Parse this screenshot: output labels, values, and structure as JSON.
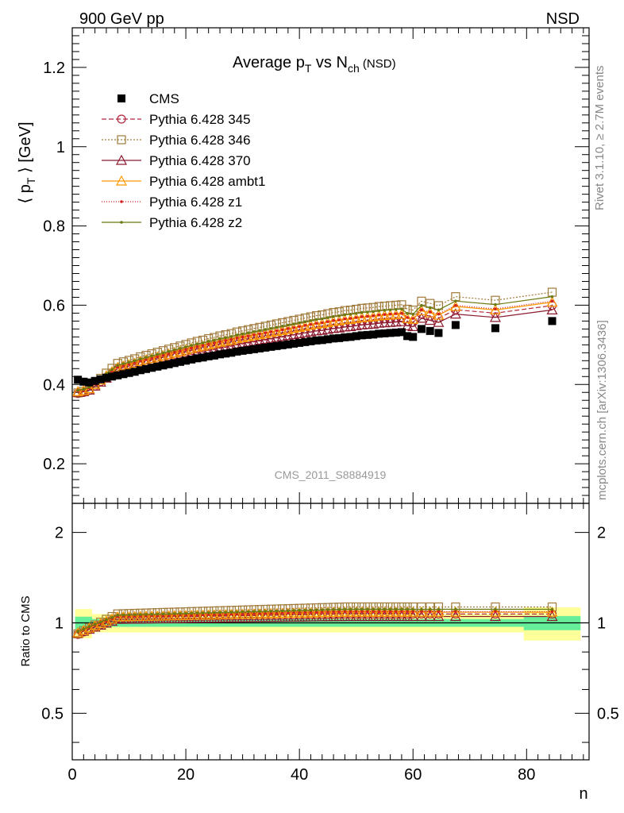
{
  "header": {
    "left_label": "900 GeV pp",
    "right_label": "NSD",
    "analysis_id": "CMS_2011_S8884919",
    "side_note_top": "Rivet 3.1.10, ≥ 2.7M events",
    "side_note_bottom": "mcplots.cern.ch [arXiv:1306.3436]"
  },
  "title": {
    "base": "Average p",
    "sub1": "T",
    "mid": " vs N",
    "sub2": "ch",
    "tail": " (NSD)"
  },
  "axes": {
    "ylabel_main": "⟨ p",
    "ylabel_main_sub": "T",
    "ylabel_main_tail": " ⟩ [GeV]",
    "ylabel_ratio": "Ratio to CMS",
    "xlabel": "n",
    "x_ticks": [
      "0",
      "20",
      "40",
      "60",
      "80"
    ],
    "y_main_ticks": [
      "0.2",
      "0.4",
      "0.6",
      "0.8",
      "1",
      "1.2"
    ],
    "y_ratio_ticks": [
      "0.5",
      "1",
      "2"
    ]
  },
  "legend": [
    {
      "label": "CMS",
      "color": "#000000",
      "marker": "filled-square",
      "dash": ""
    },
    {
      "label": "Pythia 6.428 345",
      "color": "#b2263a",
      "marker": "open-circle",
      "dash": "6,3"
    },
    {
      "label": "Pythia 6.428 346",
      "color": "#a07a3a",
      "marker": "open-square",
      "dash": "2,2"
    },
    {
      "label": "Pythia 6.428 370",
      "color": "#8b1a2e",
      "marker": "open-triangle",
      "dash": ""
    },
    {
      "label": "Pythia 6.428 ambt1",
      "color": "#ff9900",
      "marker": "open-triangle",
      "dash": ""
    },
    {
      "label": "Pythia 6.428 z1",
      "color": "#d42020",
      "marker": "dot",
      "dash": "1,2"
    },
    {
      "label": "Pythia 6.428 z2",
      "color": "#6b7a10",
      "marker": "dot",
      "dash": ""
    }
  ],
  "chart_data": {
    "type": "line",
    "xlabel": "n",
    "ylabel": "⟨ pT ⟩ [GeV]",
    "xlim": [
      0,
      91
    ],
    "ylim": [
      0.1,
      1.3
    ],
    "ratio_ylim": [
      0.35,
      2.5
    ],
    "ratio_scale": "log",
    "x": [
      1,
      2,
      3,
      4,
      5,
      6,
      7,
      8,
      9,
      10,
      11,
      12,
      13,
      14,
      15,
      16,
      17,
      18,
      19,
      20,
      21,
      22,
      23,
      24,
      25,
      26,
      27,
      28,
      29,
      30,
      31,
      32,
      33,
      34,
      35,
      36,
      37,
      38,
      39,
      40,
      41,
      42,
      43,
      44,
      45,
      46,
      47,
      48,
      49,
      50,
      51,
      52,
      53,
      54,
      55,
      56,
      57,
      58,
      59,
      60,
      61.5,
      63,
      64.5,
      67.5,
      74.5,
      84.5
    ],
    "cms": [
      0.412,
      0.407,
      0.405,
      0.409,
      0.413,
      0.417,
      0.42,
      0.423,
      0.426,
      0.429,
      0.432,
      0.436,
      0.439,
      0.442,
      0.445,
      0.448,
      0.451,
      0.454,
      0.457,
      0.46,
      0.463,
      0.466,
      0.468,
      0.471,
      0.473,
      0.476,
      0.478,
      0.48,
      0.483,
      0.485,
      0.487,
      0.489,
      0.491,
      0.493,
      0.495,
      0.497,
      0.499,
      0.501,
      0.503,
      0.505,
      0.507,
      0.509,
      0.511,
      0.512,
      0.514,
      0.516,
      0.517,
      0.519,
      0.52,
      0.522,
      0.524,
      0.525,
      0.526,
      0.528,
      0.529,
      0.53,
      0.531,
      0.532,
      0.522,
      0.52,
      0.54,
      0.535,
      0.53,
      0.55,
      0.542,
      0.56
    ],
    "cms_band_inner": 0.03,
    "cms_band_outer": 0.07,
    "series": [
      {
        "name": "Pythia 6.428 345",
        "ratio_end": 1.07
      },
      {
        "name": "Pythia 6.428 346",
        "ratio_end": 1.13
      },
      {
        "name": "Pythia 6.428 370",
        "ratio_end": 1.05
      },
      {
        "name": "Pythia 6.428 ambt1",
        "ratio_end": 1.085
      },
      {
        "name": "Pythia 6.428 z1",
        "ratio_end": 1.09
      },
      {
        "name": "Pythia 6.428 z2",
        "ratio_end": 1.11
      }
    ]
  }
}
